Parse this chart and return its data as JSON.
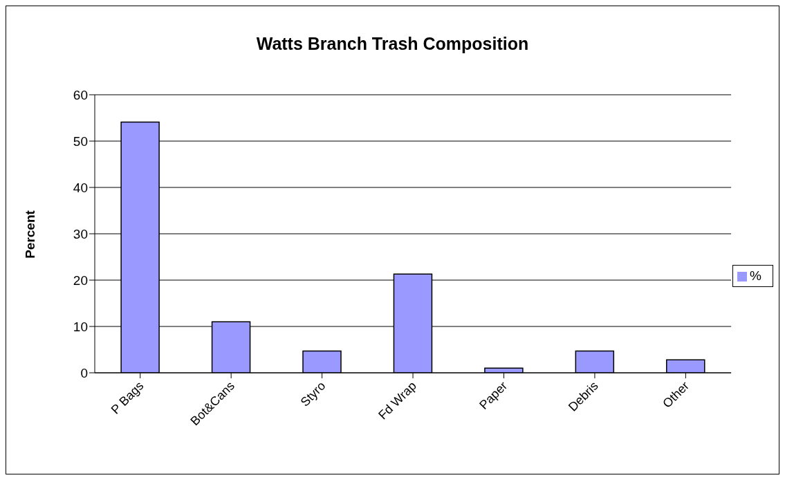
{
  "chart_data": {
    "type": "bar",
    "title": "Watts Branch Trash Composition",
    "ylabel": "Percent",
    "categories": [
      "P Bags",
      "Bot&Cans",
      "Styro",
      "Fd Wrap",
      "Paper",
      "Debris",
      "Other"
    ],
    "series": [
      {
        "name": "%",
        "color": "#9999ff",
        "values": [
          54.1,
          11.0,
          4.7,
          21.3,
          1.0,
          4.7,
          2.8
        ]
      }
    ],
    "ylim": [
      0,
      60
    ],
    "yticks": [
      0,
      10,
      20,
      30,
      40,
      50,
      60
    ],
    "grid": "y",
    "legend": "right"
  }
}
